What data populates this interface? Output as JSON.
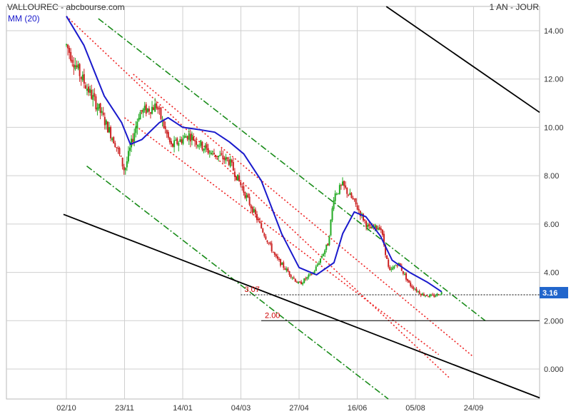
{
  "header": {
    "title": "VALLOUREC - abcbourse.com",
    "period": "1 AN - JOUR",
    "legend_label": "MM (20)"
  },
  "colors": {
    "up_candle": "#22aa22",
    "down_candle": "#cc2222",
    "moving_average": "#1a1acc",
    "channel_green": "#1a8c1a",
    "channel_red": "#ee2222",
    "trendline": "#000000",
    "last_price_bg": "#2266cc",
    "grid": "#cfcfcf"
  },
  "chart_data": {
    "type": "candlestick",
    "title": "VALLOUREC - abcbourse.com",
    "period": "1 AN - JOUR",
    "ylim": [
      -1,
      15
    ],
    "yticks": [
      {
        "label": "14.00",
        "value": 14
      },
      {
        "label": "12.00",
        "value": 12
      },
      {
        "label": "10.00",
        "value": 10
      },
      {
        "label": "8.00",
        "value": 8
      },
      {
        "label": "6.00",
        "value": 6
      },
      {
        "label": "4.00",
        "value": 4
      },
      {
        "label": "2.000",
        "value": 2
      },
      {
        "label": "0.000",
        "value": 0
      }
    ],
    "xticks": [
      "02/10",
      "23/11",
      "14/01",
      "04/03",
      "27/04",
      "16/06",
      "05/08",
      "24/09"
    ],
    "price_path": [
      {
        "x": 0,
        "y": 13.4
      },
      {
        "x": 0.25,
        "y": 12.1
      },
      {
        "x": 0.55,
        "y": 10.8
      },
      {
        "x": 0.85,
        "y": 9.3
      },
      {
        "x": 1.0,
        "y": 8.2
      },
      {
        "x": 1.25,
        "y": 10.6
      },
      {
        "x": 1.55,
        "y": 10.9
      },
      {
        "x": 1.8,
        "y": 9.2
      },
      {
        "x": 2.1,
        "y": 9.7
      },
      {
        "x": 2.45,
        "y": 9.0
      },
      {
        "x": 2.8,
        "y": 8.6
      },
      {
        "x": 3.2,
        "y": 6.6
      },
      {
        "x": 3.6,
        "y": 4.6
      },
      {
        "x": 4.0,
        "y": 3.5
      },
      {
        "x": 4.25,
        "y": 4.0
      },
      {
        "x": 4.5,
        "y": 5.2
      },
      {
        "x": 4.6,
        "y": 7.2
      },
      {
        "x": 4.75,
        "y": 7.6
      },
      {
        "x": 4.95,
        "y": 6.9
      },
      {
        "x": 5.2,
        "y": 5.8
      },
      {
        "x": 5.4,
        "y": 5.9
      },
      {
        "x": 5.55,
        "y": 4.0
      },
      {
        "x": 5.7,
        "y": 4.4
      },
      {
        "x": 5.9,
        "y": 3.5
      },
      {
        "x": 6.1,
        "y": 3.1
      },
      {
        "x": 6.3,
        "y": 3.0
      },
      {
        "x": 6.45,
        "y": 3.16
      }
    ],
    "series": [
      {
        "name": "MM (20)",
        "points": [
          {
            "x": 0,
            "y": 14.6
          },
          {
            "x": 0.3,
            "y": 13.4
          },
          {
            "x": 0.65,
            "y": 11.3
          },
          {
            "x": 0.95,
            "y": 10.2
          },
          {
            "x": 1.1,
            "y": 9.3
          },
          {
            "x": 1.3,
            "y": 9.5
          },
          {
            "x": 1.6,
            "y": 10.2
          },
          {
            "x": 1.75,
            "y": 10.4
          },
          {
            "x": 2.0,
            "y": 10.0
          },
          {
            "x": 2.3,
            "y": 9.9
          },
          {
            "x": 2.55,
            "y": 9.8
          },
          {
            "x": 2.8,
            "y": 9.4
          },
          {
            "x": 3.05,
            "y": 8.9
          },
          {
            "x": 3.35,
            "y": 7.8
          },
          {
            "x": 3.7,
            "y": 5.6
          },
          {
            "x": 4.0,
            "y": 4.2
          },
          {
            "x": 4.3,
            "y": 3.9
          },
          {
            "x": 4.6,
            "y": 4.4
          },
          {
            "x": 4.75,
            "y": 5.6
          },
          {
            "x": 4.95,
            "y": 6.5
          },
          {
            "x": 5.15,
            "y": 6.3
          },
          {
            "x": 5.4,
            "y": 5.5
          },
          {
            "x": 5.6,
            "y": 4.5
          },
          {
            "x": 5.9,
            "y": 4.0
          },
          {
            "x": 6.2,
            "y": 3.6
          },
          {
            "x": 6.45,
            "y": 3.2
          }
        ]
      }
    ],
    "trendlines": [
      {
        "name": "channel-green-upper",
        "style": "dash-dot",
        "color": "#1a8c1a",
        "x1": 0.55,
        "y1": 14.5,
        "x2": 7.2,
        "y2": 2.0
      },
      {
        "name": "channel-green-lower",
        "style": "dash-dot",
        "color": "#1a8c1a",
        "x1": 0.35,
        "y1": 8.4,
        "x2": 6.05,
        "y2": -2.2
      },
      {
        "name": "channel-red-upper",
        "style": "dotted",
        "color": "#ee2222",
        "x1": 1.15,
        "y1": 12.2,
        "x2": 7.0,
        "y2": 0.5
      },
      {
        "name": "channel-red-lower",
        "style": "dotted",
        "color": "#ee2222",
        "x1": 0,
        "y1": 14.6,
        "x2": 6.6,
        "y2": -0.4
      },
      {
        "name": "channel-red-mid",
        "style": "dotted",
        "color": "#ee2222",
        "x1": 1.0,
        "y1": 10.4,
        "x2": 6.4,
        "y2": 0.6
      },
      {
        "name": "support-line",
        "style": "solid",
        "color": "#000000",
        "x1": -0.05,
        "y1": 6.4,
        "x2": 8.25,
        "y2": -1.3
      },
      {
        "name": "resistance-line",
        "style": "solid",
        "color": "#000000",
        "x1": 5.5,
        "y1": 15.0,
        "x2": 9.35,
        "y2": 8.6
      }
    ],
    "levels": [
      {
        "label": "3.07",
        "value": 3.07,
        "x_start": 3.0,
        "style": "dotted"
      },
      {
        "label": "2.00",
        "value": 2.0,
        "x_start": 3.35,
        "style": "solid"
      }
    ],
    "last_price": {
      "label": "3.16",
      "value": 3.16
    }
  }
}
